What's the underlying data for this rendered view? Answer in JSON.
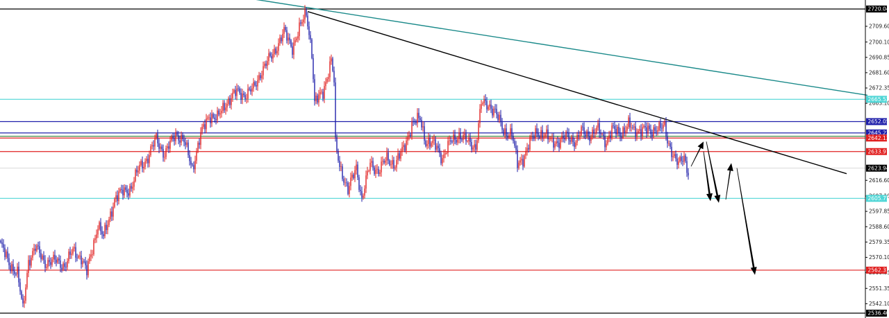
{
  "chart_data": {
    "type": "candlestick",
    "y_axis": {
      "position": "right",
      "range": [
        2536.4,
        2720.04
      ],
      "ticks": [
        "2709.60",
        "2700.10",
        "2690.85",
        "2681.60",
        "2672.35",
        "2663.10",
        "2616.60",
        "2607.10",
        "2597.85",
        "2588.60",
        "2579.35",
        "2570.10",
        "2560.85",
        "2551.35",
        "2542.10"
      ]
    },
    "price_tags": [
      {
        "label": "2720.04",
        "value": 2720.04,
        "color": "#000000"
      },
      {
        "label": "2665.53",
        "value": 2665.53,
        "color": "#4fd6d6"
      },
      {
        "label": "2652.05",
        "value": 2652.05,
        "color": "#1f1faa"
      },
      {
        "label": "2645.22",
        "value": 2645.22,
        "color": "#1f1faa"
      },
      {
        "label": "2642.13",
        "value": 2642.13,
        "color": "#e02020"
      },
      {
        "label": "2633.97",
        "value": 2633.97,
        "color": "#e02020"
      },
      {
        "label": "2623.94",
        "value": 2623.94,
        "color": "#000000"
      },
      {
        "label": "2605.71",
        "value": 2605.71,
        "color": "#4fd6d6"
      },
      {
        "label": "2562.37",
        "value": 2562.37,
        "color": "#e02020"
      },
      {
        "label": "2536.40",
        "value": 2536.4,
        "color": "#000000"
      }
    ],
    "horizontal_levels": [
      {
        "value": 2720.04,
        "color": "#000000"
      },
      {
        "value": 2665.53,
        "color": "#4fd6d6"
      },
      {
        "value": 2652.05,
        "color": "#1f1faa"
      },
      {
        "value": 2645.22,
        "color": "#1f1faa"
      },
      {
        "value": 2643.2,
        "color": "#2e7d32"
      },
      {
        "value": 2642.13,
        "color": "#e02020"
      },
      {
        "value": 2633.97,
        "color": "#e02020"
      },
      {
        "value": 2623.94,
        "color": "#cccccc"
      },
      {
        "value": 2605.71,
        "color": "#4fd6d6"
      },
      {
        "value": 2562.37,
        "color": "#e02020"
      },
      {
        "value": 2536.4,
        "color": "#000000"
      }
    ],
    "trend_lines": [
      {
        "name": "black-trendline",
        "color": "#000000",
        "from": {
          "bar": 221,
          "price": 2718.5
        },
        "to": {
          "bar": 609,
          "price": 2620.6
        }
      },
      {
        "name": "teal-trendline",
        "color": "#1b8a8a",
        "from": {
          "bar": 182,
          "price": 2726.0
        },
        "to": {
          "bar": 624,
          "price": 2668.0
        }
      }
    ],
    "projection_arrows": [
      {
        "from": {
          "bar": 497,
          "price": 2625.0
        },
        "to": {
          "bar": 506,
          "price": 2640.0
        }
      },
      {
        "from": {
          "bar": 506,
          "price": 2634.0
        },
        "to": {
          "bar": 511,
          "price": 2604.0
        }
      },
      {
        "from": {
          "bar": 508,
          "price": 2640.0
        },
        "to": {
          "bar": 517,
          "price": 2603.0
        }
      },
      {
        "from": {
          "bar": 522,
          "price": 2605.0
        },
        "to": {
          "bar": 526,
          "price": 2627.0
        }
      },
      {
        "from": {
          "bar": 530,
          "price": 2624.0
        },
        "to": {
          "bar": 543,
          "price": 2559.5
        }
      }
    ],
    "colors": {
      "up": "#e02020",
      "down": "#1f1faa",
      "background": "#ffffff"
    },
    "series": [
      {
        "name": "",
        "anchors": [
          [
            0,
            2578
          ],
          [
            6,
            2566
          ],
          [
            12,
            2561
          ],
          [
            16,
            2538
          ],
          [
            20,
            2568
          ],
          [
            25,
            2576
          ],
          [
            32,
            2567
          ],
          [
            40,
            2568
          ],
          [
            46,
            2565
          ],
          [
            52,
            2574
          ],
          [
            58,
            2570
          ],
          [
            62,
            2561
          ],
          [
            70,
            2590
          ],
          [
            74,
            2582
          ],
          [
            82,
            2605
          ],
          [
            88,
            2610
          ],
          [
            94,
            2612
          ],
          [
            100,
            2625
          ],
          [
            106,
            2630
          ],
          [
            112,
            2642
          ],
          [
            118,
            2632
          ],
          [
            126,
            2645
          ],
          [
            132,
            2640
          ],
          [
            138,
            2624
          ],
          [
            144,
            2644
          ],
          [
            150,
            2656
          ],
          [
            156,
            2654
          ],
          [
            162,
            2663
          ],
          [
            170,
            2670
          ],
          [
            176,
            2668
          ],
          [
            182,
            2672
          ],
          [
            188,
            2683
          ],
          [
            196,
            2693
          ],
          [
            204,
            2706
          ],
          [
            210,
            2697
          ],
          [
            218,
            2714
          ],
          [
            220,
            2718
          ],
          [
            224,
            2694
          ],
          [
            226,
            2663
          ],
          [
            232,
            2670
          ],
          [
            238,
            2689
          ],
          [
            240,
            2676
          ],
          [
            241,
            2638
          ],
          [
            244,
            2626
          ],
          [
            250,
            2610
          ],
          [
            256,
            2625
          ],
          [
            260,
            2605
          ],
          [
            266,
            2627
          ],
          [
            272,
            2622
          ],
          [
            278,
            2630
          ],
          [
            284,
            2626
          ],
          [
            290,
            2636
          ],
          [
            296,
            2650
          ],
          [
            302,
            2654
          ],
          [
            306,
            2640
          ],
          [
            314,
            2637
          ],
          [
            318,
            2630
          ],
          [
            324,
            2640
          ],
          [
            330,
            2644
          ],
          [
            336,
            2640
          ],
          [
            342,
            2637
          ],
          [
            346,
            2663
          ],
          [
            352,
            2662
          ],
          [
            356,
            2658
          ],
          [
            362,
            2646
          ],
          [
            368,
            2645
          ],
          [
            372,
            2626
          ],
          [
            376,
            2630
          ],
          [
            380,
            2638
          ],
          [
            386,
            2646
          ],
          [
            392,
            2644
          ],
          [
            396,
            2640
          ],
          [
            402,
            2640
          ],
          [
            408,
            2643
          ],
          [
            414,
            2640
          ],
          [
            418,
            2646
          ],
          [
            424,
            2644
          ],
          [
            430,
            2647
          ],
          [
            436,
            2640
          ],
          [
            440,
            2647
          ],
          [
            446,
            2645
          ],
          [
            452,
            2650
          ],
          [
            456,
            2646
          ],
          [
            462,
            2648
          ],
          [
            468,
            2645
          ],
          [
            472,
            2649
          ],
          [
            478,
            2648
          ],
          [
            480,
            2640
          ],
          [
            484,
            2633
          ],
          [
            488,
            2626
          ],
          [
            492,
            2630
          ],
          [
            495,
            2622
          ]
        ]
      }
    ]
  }
}
